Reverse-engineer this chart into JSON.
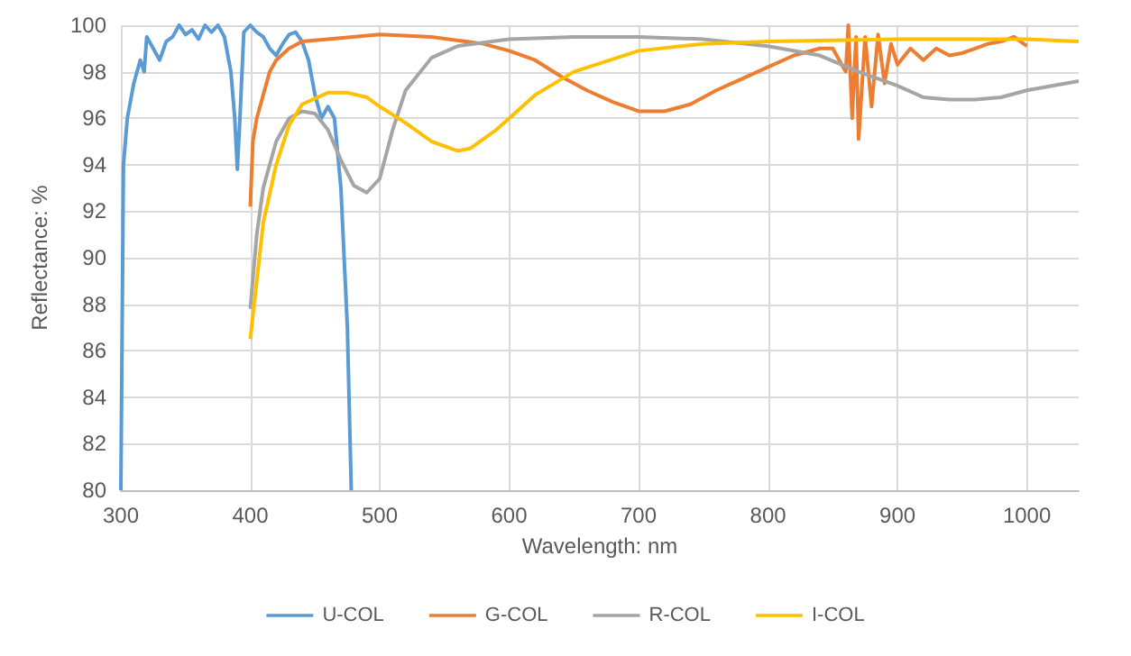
{
  "chart_data": {
    "type": "line",
    "xlabel": "Wavelength: nm",
    "ylabel": "Reflectance: %",
    "xlim": [
      300,
      1040
    ],
    "xticks": [
      300,
      400,
      500,
      600,
      700,
      800,
      900,
      1000
    ],
    "ylim": [
      80,
      100
    ],
    "yticks": [
      80,
      82,
      84,
      86,
      88,
      90,
      92,
      94,
      96,
      98,
      100
    ],
    "grid": true,
    "legend": "bottom",
    "marker": "none",
    "line_style": "solid",
    "series": [
      {
        "name": "U-COL",
        "color": "#5b9bd5",
        "x": [
          300,
          302,
          305,
          310,
          315,
          318,
          320,
          325,
          330,
          335,
          340,
          345,
          350,
          355,
          360,
          365,
          370,
          375,
          380,
          385,
          388,
          390,
          392,
          395,
          400,
          405,
          410,
          415,
          420,
          425,
          430,
          435,
          440,
          445,
          450,
          455,
          460,
          465,
          470,
          475,
          478
        ],
        "values": [
          80,
          94,
          96,
          97.5,
          98.5,
          98,
          99.5,
          99,
          98.5,
          99.3,
          99.5,
          100,
          99.6,
          99.8,
          99.4,
          100,
          99.7,
          100,
          99.5,
          98,
          96,
          93.8,
          96,
          99.7,
          100,
          99.7,
          99.5,
          99,
          98.7,
          99.2,
          99.6,
          99.7,
          99.3,
          98.5,
          97,
          96,
          96.5,
          96,
          93,
          87,
          80
        ]
      },
      {
        "name": "G-COL",
        "color": "#ed7d31",
        "x": [
          400,
          402,
          405,
          410,
          415,
          420,
          430,
          440,
          460,
          500,
          540,
          580,
          600,
          620,
          640,
          660,
          680,
          700,
          720,
          740,
          760,
          780,
          800,
          820,
          840,
          850,
          860,
          862,
          865,
          868,
          870,
          875,
          880,
          885,
          890,
          895,
          900,
          910,
          920,
          930,
          940,
          950,
          960,
          970,
          980,
          990,
          1000
        ],
        "values": [
          92.2,
          95,
          96,
          97,
          98,
          98.5,
          99,
          99.3,
          99.4,
          99.6,
          99.5,
          99.2,
          98.9,
          98.5,
          97.8,
          97.2,
          96.7,
          96.3,
          96.3,
          96.6,
          97.2,
          97.7,
          98.2,
          98.7,
          99,
          99,
          98,
          100,
          96,
          99.5,
          95.1,
          99.5,
          96.5,
          99.6,
          97.5,
          99.2,
          98.3,
          99,
          98.5,
          99,
          98.7,
          98.8,
          99,
          99.2,
          99.3,
          99.5,
          99.1
        ]
      },
      {
        "name": "R-COL",
        "color": "#a5a5a5",
        "x": [
          400,
          405,
          410,
          420,
          430,
          440,
          450,
          460,
          470,
          480,
          490,
          500,
          510,
          520,
          540,
          560,
          600,
          650,
          700,
          750,
          800,
          840,
          870,
          900,
          920,
          940,
          960,
          980,
          1000,
          1040
        ],
        "values": [
          87.8,
          91,
          93,
          95,
          96,
          96.3,
          96.2,
          95.5,
          94.2,
          93.1,
          92.8,
          93.4,
          95.5,
          97.2,
          98.6,
          99.1,
          99.4,
          99.5,
          99.5,
          99.4,
          99.1,
          98.7,
          98,
          97.4,
          96.9,
          96.8,
          96.8,
          96.9,
          97.2,
          97.6
        ]
      },
      {
        "name": "I-COL",
        "color": "#ffc000",
        "x": [
          400,
          405,
          410,
          420,
          430,
          440,
          460,
          475,
          490,
          500,
          520,
          540,
          560,
          570,
          590,
          600,
          620,
          650,
          700,
          750,
          800,
          900,
          1000,
          1040
        ],
        "values": [
          86.5,
          89,
          91.5,
          94,
          95.7,
          96.6,
          97.1,
          97.1,
          96.9,
          96.5,
          95.8,
          95,
          94.6,
          94.7,
          95.5,
          96,
          97,
          98,
          98.9,
          99.2,
          99.3,
          99.4,
          99.4,
          99.3
        ]
      }
    ]
  }
}
